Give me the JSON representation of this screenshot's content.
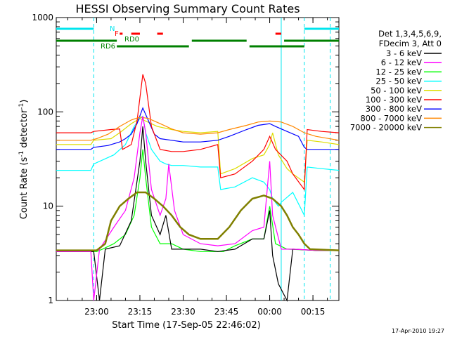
{
  "chart_data": {
    "type": "line",
    "title": "HESSI Observing Summary Count Rates",
    "xlabel": "Start Time (17-Sep-05 22:46:02)",
    "ylabel_main": "Count Rate (s",
    "ylabel_sup1": "-1",
    "ylabel_mid": " detector",
    "ylabel_sup2": "-1",
    "ylabel_end": ")",
    "yscale": "log",
    "ylim": [
      1,
      1000
    ],
    "xlim_minutes": [
      0,
      98
    ],
    "x_ticks": [
      {
        "minute": 14,
        "label": "23:00"
      },
      {
        "minute": 29,
        "label": "23:15"
      },
      {
        "minute": 44,
        "label": "23:30"
      },
      {
        "minute": 59,
        "label": "23:45"
      },
      {
        "minute": 74,
        "label": "00:00"
      },
      {
        "minute": 89,
        "label": "00:15"
      }
    ],
    "y_ticks": [
      {
        "value": 1,
        "label": "1"
      },
      {
        "value": 10,
        "label": "10"
      },
      {
        "value": 100,
        "label": "100"
      },
      {
        "value": 1000,
        "label": "1000"
      }
    ],
    "legend_header": [
      "Det 1,3,4,5,6,9,",
      "FDecim 3, Att 0"
    ],
    "series": [
      {
        "name": "3 - 6 keV",
        "color": "#000000",
        "points": [
          [
            0,
            3.3
          ],
          [
            13,
            3.3
          ],
          [
            15,
            1.0
          ],
          [
            17,
            3.5
          ],
          [
            22,
            3.8
          ],
          [
            26,
            7
          ],
          [
            29,
            30
          ],
          [
            30,
            70
          ],
          [
            31,
            30
          ],
          [
            33,
            8
          ],
          [
            36,
            5
          ],
          [
            38,
            8
          ],
          [
            40,
            3.5
          ],
          [
            44,
            3.5
          ],
          [
            50,
            3.5
          ],
          [
            56,
            3.3
          ],
          [
            62,
            3.5
          ],
          [
            68,
            4.5
          ],
          [
            72,
            4.5
          ],
          [
            74,
            9
          ],
          [
            75,
            3
          ],
          [
            77,
            1.5
          ],
          [
            80,
            1.0
          ],
          [
            82,
            3.5
          ],
          [
            90,
            3.4
          ],
          [
            98,
            3.4
          ]
        ]
      },
      {
        "name": "6 - 12 keV",
        "color": "#ff00ff",
        "points": [
          [
            0,
            3.3
          ],
          [
            12,
            3.3
          ],
          [
            13,
            1.0
          ],
          [
            15,
            3.5
          ],
          [
            20,
            6
          ],
          [
            24,
            9
          ],
          [
            27,
            20
          ],
          [
            29,
            60
          ],
          [
            30,
            90
          ],
          [
            31,
            60
          ],
          [
            33,
            15
          ],
          [
            36,
            8
          ],
          [
            38,
            12
          ],
          [
            39,
            28
          ],
          [
            41,
            9
          ],
          [
            44,
            5
          ],
          [
            50,
            4
          ],
          [
            56,
            3.8
          ],
          [
            62,
            4
          ],
          [
            68,
            5.5
          ],
          [
            72,
            6
          ],
          [
            74,
            30
          ],
          [
            75,
            8
          ],
          [
            78,
            3.5
          ],
          [
            82,
            3.5
          ],
          [
            90,
            3.4
          ],
          [
            98,
            3.4
          ]
        ]
      },
      {
        "name": "12 - 25 keV",
        "color": "#00ff00",
        "points": [
          [
            0,
            3.3
          ],
          [
            14,
            3.3
          ],
          [
            16,
            3.5
          ],
          [
            20,
            4
          ],
          [
            24,
            5
          ],
          [
            27,
            8
          ],
          [
            29,
            20
          ],
          [
            30,
            40
          ],
          [
            31,
            20
          ],
          [
            33,
            6
          ],
          [
            36,
            4
          ],
          [
            40,
            4
          ],
          [
            44,
            3.5
          ],
          [
            50,
            3.3
          ],
          [
            58,
            3.3
          ],
          [
            62,
            3.8
          ],
          [
            68,
            4.5
          ],
          [
            72,
            4.5
          ],
          [
            74,
            10
          ],
          [
            76,
            4
          ],
          [
            80,
            3.5
          ],
          [
            90,
            3.4
          ],
          [
            98,
            3.4
          ]
        ]
      },
      {
        "name": "25 - 50 keV",
        "color": "#00ffff",
        "points": [
          [
            0,
            24
          ],
          [
            12,
            24
          ],
          [
            13,
            28
          ],
          [
            20,
            35
          ],
          [
            24,
            45
          ],
          [
            27,
            70
          ],
          [
            29,
            85
          ],
          [
            30,
            90
          ],
          [
            31,
            60
          ],
          [
            33,
            40
          ],
          [
            36,
            30
          ],
          [
            38,
            28
          ],
          [
            40,
            27
          ],
          [
            44,
            27
          ],
          [
            50,
            26
          ],
          [
            56,
            26
          ],
          [
            57,
            15
          ],
          [
            62,
            16
          ],
          [
            68,
            20
          ],
          [
            72,
            18
          ],
          [
            74,
            15
          ],
          [
            75,
            12
          ],
          [
            77,
            10
          ],
          [
            78,
            11
          ],
          [
            82,
            14
          ],
          [
            86,
            8
          ],
          [
            87,
            26
          ],
          [
            92,
            25
          ],
          [
            98,
            24
          ]
        ]
      },
      {
        "name": "50 - 100 keV",
        "color": "#dddd00",
        "points": [
          [
            0,
            45
          ],
          [
            12,
            45
          ],
          [
            13,
            50
          ],
          [
            19,
            52
          ],
          [
            22,
            60
          ],
          [
            26,
            75
          ],
          [
            29,
            85
          ],
          [
            31,
            80
          ],
          [
            35,
            70
          ],
          [
            40,
            65
          ],
          [
            44,
            62
          ],
          [
            50,
            60
          ],
          [
            56,
            62
          ],
          [
            57,
            22
          ],
          [
            62,
            25
          ],
          [
            68,
            32
          ],
          [
            72,
            35
          ],
          [
            74,
            45
          ],
          [
            75,
            60
          ],
          [
            77,
            35
          ],
          [
            80,
            25
          ],
          [
            82,
            22
          ],
          [
            86,
            18
          ],
          [
            87,
            50
          ],
          [
            92,
            48
          ],
          [
            98,
            45
          ]
        ]
      },
      {
        "name": "100 - 300 keV",
        "color": "#ff0000",
        "points": [
          [
            0,
            60
          ],
          [
            12,
            60
          ],
          [
            13,
            62
          ],
          [
            19,
            65
          ],
          [
            22,
            66
          ],
          [
            23,
            40
          ],
          [
            26,
            45
          ],
          [
            28,
            80
          ],
          [
            30,
            250
          ],
          [
            31,
            200
          ],
          [
            33,
            70
          ],
          [
            36,
            40
          ],
          [
            40,
            38
          ],
          [
            44,
            38
          ],
          [
            50,
            40
          ],
          [
            56,
            45
          ],
          [
            57,
            20
          ],
          [
            62,
            22
          ],
          [
            68,
            30
          ],
          [
            72,
            40
          ],
          [
            74,
            55
          ],
          [
            76,
            40
          ],
          [
            80,
            30
          ],
          [
            82,
            22
          ],
          [
            86,
            15
          ],
          [
            87,
            65
          ],
          [
            92,
            62
          ],
          [
            98,
            60
          ]
        ]
      },
      {
        "name": "300 - 800 keV",
        "color": "#0000ff",
        "points": [
          [
            0,
            40
          ],
          [
            12,
            40
          ],
          [
            13,
            42
          ],
          [
            18,
            44
          ],
          [
            22,
            48
          ],
          [
            24,
            52
          ],
          [
            26,
            58
          ],
          [
            28,
            75
          ],
          [
            30,
            110
          ],
          [
            32,
            80
          ],
          [
            34,
            58
          ],
          [
            36,
            52
          ],
          [
            40,
            50
          ],
          [
            44,
            48
          ],
          [
            50,
            48
          ],
          [
            56,
            50
          ],
          [
            60,
            55
          ],
          [
            66,
            65
          ],
          [
            70,
            72
          ],
          [
            74,
            75
          ],
          [
            76,
            70
          ],
          [
            80,
            62
          ],
          [
            84,
            55
          ],
          [
            86,
            42
          ],
          [
            87,
            40
          ],
          [
            92,
            40
          ],
          [
            98,
            40
          ]
        ]
      },
      {
        "name": "800 - 7000 keV",
        "color": "#ff8800",
        "points": [
          [
            0,
            50
          ],
          [
            12,
            50
          ],
          [
            14,
            52
          ],
          [
            18,
            58
          ],
          [
            22,
            70
          ],
          [
            26,
            82
          ],
          [
            29,
            88
          ],
          [
            32,
            85
          ],
          [
            36,
            75
          ],
          [
            40,
            66
          ],
          [
            44,
            60
          ],
          [
            50,
            58
          ],
          [
            56,
            60
          ],
          [
            60,
            65
          ],
          [
            66,
            72
          ],
          [
            70,
            78
          ],
          [
            74,
            80
          ],
          [
            78,
            78
          ],
          [
            82,
            70
          ],
          [
            86,
            60
          ],
          [
            90,
            55
          ],
          [
            98,
            50
          ]
        ]
      },
      {
        "name": "7000 - 20000 keV",
        "color": "#808000",
        "points": [
          [
            0,
            3.4
          ],
          [
            14,
            3.4
          ],
          [
            17,
            4
          ],
          [
            19,
            7
          ],
          [
            22,
            10
          ],
          [
            25,
            12
          ],
          [
            28,
            14
          ],
          [
            31,
            14
          ],
          [
            34,
            12
          ],
          [
            37,
            10
          ],
          [
            40,
            8
          ],
          [
            43,
            6
          ],
          [
            46,
            5
          ],
          [
            50,
            4.5
          ],
          [
            56,
            4.5
          ],
          [
            60,
            6
          ],
          [
            64,
            9
          ],
          [
            68,
            12
          ],
          [
            72,
            13
          ],
          [
            75,
            12
          ],
          [
            78,
            10
          ],
          [
            80,
            8
          ],
          [
            82,
            6
          ],
          [
            84,
            5
          ],
          [
            86,
            4
          ],
          [
            88,
            3.5
          ],
          [
            98,
            3.4
          ]
        ]
      }
    ],
    "flags": {
      "n_label": "N",
      "f_label": "F",
      "rd0_label": "RD0",
      "rd6_label": "RD6"
    },
    "footer_date": "17-Apr-2010 19:27"
  }
}
